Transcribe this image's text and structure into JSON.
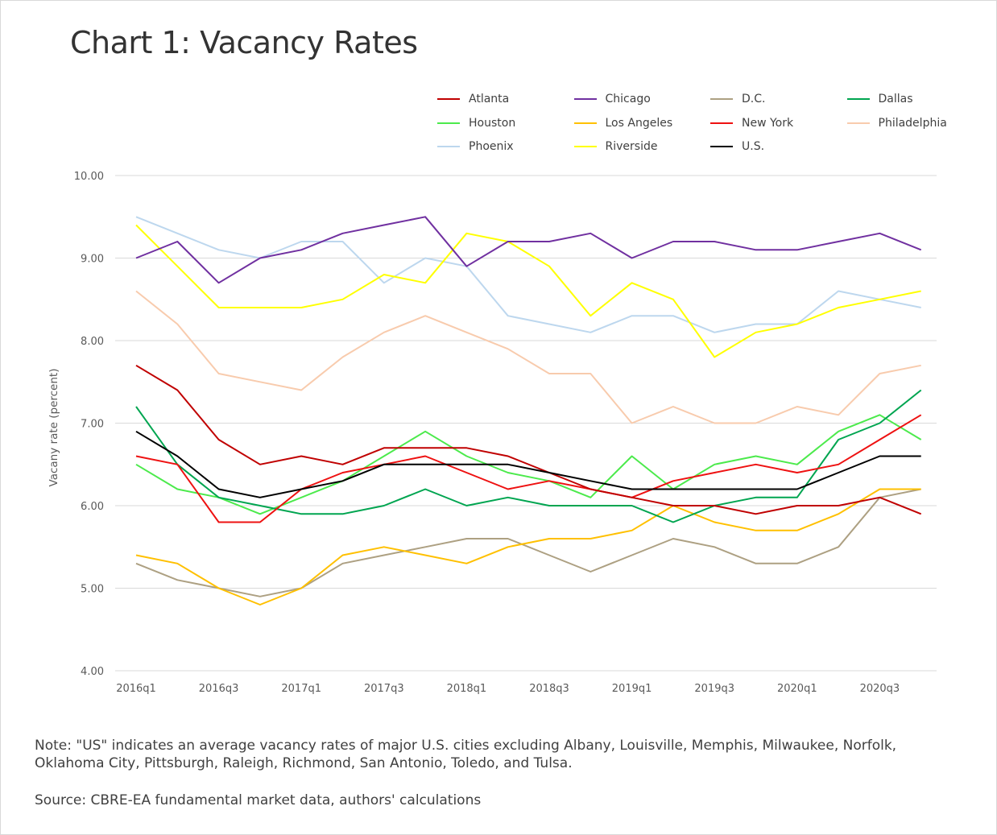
{
  "title": "Chart 1: Vacancy Rates",
  "note": "Note: \"US\" indicates an average vacancy rates of major U.S. cities excluding Albany, Louisville, Memphis, Milwaukee, Norfolk, Oklahoma City, Pittsburgh, Raleigh, Richmond, San Antonio, Toledo, and Tulsa.",
  "source": "Source: CBRE-EA fundamental market data, authors' calculations",
  "chart_data": {
    "type": "line",
    "title": "Chart 1: Vacancy Rates",
    "xlabel": "",
    "ylabel": "Vacany rate (percent)",
    "ylim": [
      4.0,
      10.0
    ],
    "yticks": [
      "4.00",
      "5.00",
      "6.00",
      "7.00",
      "8.00",
      "9.00",
      "10.00"
    ],
    "grid": true,
    "legend_position": "top",
    "x": [
      "2016q1",
      "2016q2",
      "2016q3",
      "2016q4",
      "2017q1",
      "2017q2",
      "2017q3",
      "2017q4",
      "2018q1",
      "2018q2",
      "2018q3",
      "2018q4",
      "2019q1",
      "2019q2",
      "2019q3",
      "2019q4",
      "2020q1",
      "2020q2",
      "2020q3",
      "2020q4"
    ],
    "xtick_labels": [
      "2016q1",
      "",
      "2016q3",
      "",
      "2017q1",
      "",
      "2017q3",
      "",
      "2018q1",
      "",
      "2018q3",
      "",
      "2019q1",
      "",
      "2019q3",
      "",
      "2020q1",
      "",
      "2020q3",
      ""
    ],
    "series": [
      {
        "name": "Philadelphia",
        "color": "#F8CBAD",
        "values": [
          8.6,
          8.2,
          7.6,
          7.5,
          7.4,
          7.8,
          8.1,
          8.3,
          8.1,
          7.9,
          7.6,
          7.6,
          7.0,
          7.2,
          7.0,
          7.0,
          7.2,
          7.1,
          7.6,
          7.7
        ]
      },
      {
        "name": "Phoenix",
        "color": "#BDD7EE",
        "values": [
          9.5,
          9.3,
          9.1,
          9.0,
          9.2,
          9.2,
          8.7,
          9.0,
          8.9,
          8.3,
          8.2,
          8.1,
          8.3,
          8.3,
          8.1,
          8.2,
          8.2,
          8.6,
          8.5,
          8.4
        ]
      },
      {
        "name": "Riverside",
        "color": "#FFFF00",
        "values": [
          9.4,
          8.9,
          8.4,
          8.4,
          8.4,
          8.5,
          8.8,
          8.7,
          9.3,
          9.2,
          8.9,
          8.3,
          8.7,
          8.5,
          7.8,
          8.1,
          8.2,
          8.4,
          8.5,
          8.6
        ]
      },
      {
        "name": "D.C.",
        "color": "#ADA082",
        "values": [
          5.3,
          5.1,
          5.0,
          4.9,
          5.0,
          5.3,
          5.4,
          5.5,
          5.6,
          5.6,
          5.4,
          5.2,
          5.4,
          5.6,
          5.5,
          5.3,
          5.3,
          5.5,
          6.1,
          6.2
        ]
      },
      {
        "name": "Los Angeles",
        "color": "#FFC000",
        "values": [
          5.4,
          5.3,
          5.0,
          4.8,
          5.0,
          5.4,
          5.5,
          5.4,
          5.3,
          5.5,
          5.6,
          5.6,
          5.7,
          6.0,
          5.8,
          5.7,
          5.7,
          5.9,
          6.2,
          6.2
        ]
      },
      {
        "name": "Houston",
        "color": "#4CEA4C",
        "values": [
          6.5,
          6.2,
          6.1,
          5.9,
          6.1,
          6.3,
          6.6,
          6.9,
          6.6,
          6.4,
          6.3,
          6.1,
          6.6,
          6.2,
          6.5,
          6.6,
          6.5,
          6.9,
          7.1,
          6.8
        ]
      },
      {
        "name": "Dallas",
        "color": "#00A550",
        "values": [
          7.2,
          6.5,
          6.1,
          6.0,
          5.9,
          5.9,
          6.0,
          6.2,
          6.0,
          6.1,
          6.0,
          6.0,
          6.0,
          5.8,
          6.0,
          6.1,
          6.1,
          6.8,
          7.0,
          7.4
        ]
      },
      {
        "name": "Chicago",
        "color": "#7030A0",
        "values": [
          9.0,
          9.2,
          8.7,
          9.0,
          9.1,
          9.3,
          9.4,
          9.5,
          8.9,
          9.2,
          9.2,
          9.3,
          9.0,
          9.2,
          9.2,
          9.1,
          9.1,
          9.2,
          9.3,
          9.1
        ]
      },
      {
        "name": "New York",
        "color": "#EE1111",
        "values": [
          6.6,
          6.5,
          5.8,
          5.8,
          6.2,
          6.4,
          6.5,
          6.6,
          6.4,
          6.2,
          6.3,
          6.2,
          6.1,
          6.3,
          6.4,
          6.5,
          6.4,
          6.5,
          6.8,
          7.1
        ]
      },
      {
        "name": "Atlanta",
        "color": "#C00000",
        "values": [
          7.7,
          7.4,
          6.8,
          6.5,
          6.6,
          6.5,
          6.7,
          6.7,
          6.7,
          6.6,
          6.4,
          6.2,
          6.1,
          6.0,
          6.0,
          5.9,
          6.0,
          6.0,
          6.1,
          5.9
        ]
      },
      {
        "name": "U.S.",
        "color": "#000000",
        "values": [
          6.9,
          6.6,
          6.2,
          6.1,
          6.2,
          6.3,
          6.5,
          6.5,
          6.5,
          6.5,
          6.4,
          6.3,
          6.2,
          6.2,
          6.2,
          6.2,
          6.2,
          6.4,
          6.6,
          6.6
        ]
      }
    ],
    "legend_order": [
      "Atlanta",
      "Chicago",
      "D.C.",
      "Dallas",
      "Houston",
      "Los Angeles",
      "New York",
      "Philadelphia",
      "Phoenix",
      "Riverside",
      "U.S."
    ]
  }
}
